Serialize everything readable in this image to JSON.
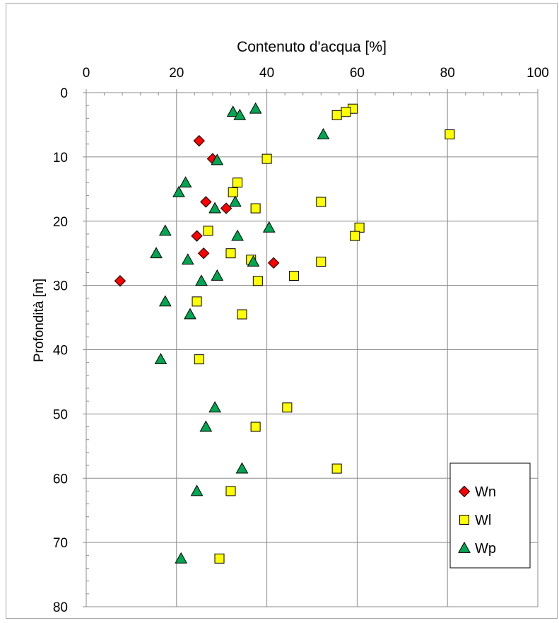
{
  "chart_data": {
    "type": "scatter",
    "title": "",
    "xlabel": "Contenuto d'acqua [%]",
    "ylabel": "Profondità [m]",
    "xlim": [
      0,
      100
    ],
    "ylim": [
      0,
      80
    ],
    "y_inverted": true,
    "x_axis_position": "top",
    "x_ticks": [
      "0",
      "20",
      "40",
      "60",
      "80",
      "100"
    ],
    "y_ticks": [
      "0",
      "10",
      "20",
      "30",
      "40",
      "50",
      "60",
      "70",
      "80"
    ],
    "grid": true,
    "legend_position": "bottom-right",
    "series": [
      {
        "name": "Wn",
        "marker": "diamond",
        "color": "#ff0000",
        "points": [
          {
            "x": 25,
            "y": 7.5
          },
          {
            "x": 28,
            "y": 10.3
          },
          {
            "x": 26.5,
            "y": 17
          },
          {
            "x": 31,
            "y": 18
          },
          {
            "x": 24.5,
            "y": 22.3
          },
          {
            "x": 26,
            "y": 25
          },
          {
            "x": 41.5,
            "y": 26.5
          },
          {
            "x": 7.5,
            "y": 29.3
          }
        ]
      },
      {
        "name": "Wl",
        "marker": "square",
        "color": "#ffff00",
        "points": [
          {
            "x": 59,
            "y": 2.5
          },
          {
            "x": 57.5,
            "y": 3
          },
          {
            "x": 55.5,
            "y": 3.5
          },
          {
            "x": 80.5,
            "y": 6.5
          },
          {
            "x": 40,
            "y": 10.3
          },
          {
            "x": 33.5,
            "y": 14
          },
          {
            "x": 32.5,
            "y": 15.5
          },
          {
            "x": 52,
            "y": 17
          },
          {
            "x": 37.5,
            "y": 18
          },
          {
            "x": 27,
            "y": 21.5
          },
          {
            "x": 60.5,
            "y": 21
          },
          {
            "x": 59.5,
            "y": 22.3
          },
          {
            "x": 32,
            "y": 25
          },
          {
            "x": 36.5,
            "y": 26
          },
          {
            "x": 52,
            "y": 26.3
          },
          {
            "x": 46,
            "y": 28.5
          },
          {
            "x": 38,
            "y": 29.3
          },
          {
            "x": 24.5,
            "y": 32.5
          },
          {
            "x": 34.5,
            "y": 34.5
          },
          {
            "x": 25,
            "y": 41.5
          },
          {
            "x": 44.5,
            "y": 49
          },
          {
            "x": 37.5,
            "y": 52
          },
          {
            "x": 55.5,
            "y": 58.5
          },
          {
            "x": 32,
            "y": 62
          },
          {
            "x": 29.5,
            "y": 72.5
          }
        ]
      },
      {
        "name": "Wp",
        "marker": "triangle",
        "color": "#00a651",
        "points": [
          {
            "x": 37.5,
            "y": 2.5
          },
          {
            "x": 32.5,
            "y": 3
          },
          {
            "x": 34,
            "y": 3.5
          },
          {
            "x": 52.5,
            "y": 6.5
          },
          {
            "x": 29,
            "y": 10.5
          },
          {
            "x": 22,
            "y": 14
          },
          {
            "x": 20.5,
            "y": 15.5
          },
          {
            "x": 33,
            "y": 17
          },
          {
            "x": 28.5,
            "y": 18
          },
          {
            "x": 17.5,
            "y": 21.5
          },
          {
            "x": 40.5,
            "y": 21
          },
          {
            "x": 33.5,
            "y": 22.3
          },
          {
            "x": 15.5,
            "y": 25
          },
          {
            "x": 22.5,
            "y": 26
          },
          {
            "x": 37,
            "y": 26.3
          },
          {
            "x": 29,
            "y": 28.5
          },
          {
            "x": 25.5,
            "y": 29.3
          },
          {
            "x": 17.5,
            "y": 32.5
          },
          {
            "x": 23,
            "y": 34.5
          },
          {
            "x": 16.5,
            "y": 41.5
          },
          {
            "x": 28.5,
            "y": 49
          },
          {
            "x": 26.5,
            "y": 52
          },
          {
            "x": 34.5,
            "y": 58.5
          },
          {
            "x": 24.5,
            "y": 62
          },
          {
            "x": 21,
            "y": 72.5
          }
        ]
      }
    ]
  }
}
